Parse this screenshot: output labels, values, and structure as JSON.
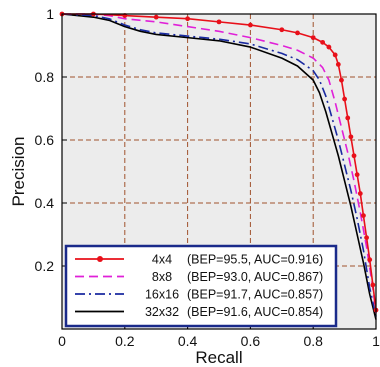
{
  "chart_data": {
    "type": "line",
    "title": "",
    "xlabel": "Recall",
    "ylabel": "Precision",
    "xlim": [
      0,
      1
    ],
    "ylim": [
      0,
      1
    ],
    "xticks": [
      0,
      0.2,
      0.4,
      0.6,
      0.8,
      1
    ],
    "yticks": [
      0.2,
      0.4,
      0.6,
      0.8,
      1
    ],
    "xtick_labels": [
      "0",
      "0.2",
      "0.4",
      "0.6",
      "0.8",
      "1"
    ],
    "ytick_labels": [
      "0.2",
      "0.4",
      "0.6",
      "0.8",
      "1"
    ],
    "grid": true,
    "grid_color": "#a0522d",
    "plot_background": "#ececec",
    "legend_placement": "bottom-left",
    "legend_border_color": "#1a2a8a",
    "series": [
      {
        "name": "4x4",
        "legend_note": "(BEP=95.5, AUC=0.916)",
        "color": "#e8101a",
        "line_style": "solid",
        "marker": "circle",
        "x": [
          0.0,
          0.1,
          0.2,
          0.3,
          0.4,
          0.5,
          0.6,
          0.7,
          0.75,
          0.8,
          0.83,
          0.85,
          0.87,
          0.88,
          0.89,
          0.9,
          0.91,
          0.92,
          0.93,
          0.94,
          0.95,
          0.96,
          0.97,
          0.98,
          0.99,
          1.0
        ],
        "y": [
          1.0,
          1.0,
          0.995,
          0.99,
          0.985,
          0.975,
          0.965,
          0.95,
          0.94,
          0.925,
          0.91,
          0.895,
          0.87,
          0.84,
          0.79,
          0.73,
          0.67,
          0.61,
          0.55,
          0.49,
          0.43,
          0.36,
          0.29,
          0.22,
          0.14,
          0.06
        ]
      },
      {
        "name": "8x8",
        "legend_note": "(BEP=93.0, AUC=0.867)",
        "color": "#e020d8",
        "line_style": "dashed",
        "marker": "none",
        "x": [
          0.0,
          0.1,
          0.15,
          0.2,
          0.3,
          0.4,
          0.5,
          0.6,
          0.7,
          0.75,
          0.8,
          0.83,
          0.85,
          0.87,
          0.89,
          0.91,
          0.93,
          0.95,
          0.97,
          0.99,
          1.0
        ],
        "y": [
          1.0,
          1.0,
          0.995,
          0.985,
          0.975,
          0.96,
          0.945,
          0.925,
          0.9,
          0.885,
          0.86,
          0.83,
          0.79,
          0.72,
          0.64,
          0.56,
          0.47,
          0.37,
          0.26,
          0.13,
          0.05
        ]
      },
      {
        "name": "16x16",
        "legend_note": "(BEP=91.7, AUC=0.857)",
        "color": "#1a2aa0",
        "line_style": "dash-dot",
        "marker": "none",
        "x": [
          0.0,
          0.1,
          0.15,
          0.2,
          0.25,
          0.3,
          0.4,
          0.5,
          0.6,
          0.7,
          0.75,
          0.8,
          0.82,
          0.84,
          0.86,
          0.88,
          0.9,
          0.92,
          0.94,
          0.96,
          0.98,
          1.0
        ],
        "y": [
          1.0,
          0.995,
          0.985,
          0.965,
          0.95,
          0.94,
          0.93,
          0.92,
          0.905,
          0.875,
          0.855,
          0.82,
          0.79,
          0.74,
          0.67,
          0.6,
          0.52,
          0.44,
          0.35,
          0.25,
          0.13,
          0.04
        ]
      },
      {
        "name": "32x32",
        "legend_note": "(BEP=91.6, AUC=0.854)",
        "color": "#000000",
        "line_style": "solid",
        "marker": "none",
        "x": [
          0.0,
          0.1,
          0.15,
          0.2,
          0.25,
          0.3,
          0.4,
          0.5,
          0.6,
          0.7,
          0.75,
          0.8,
          0.82,
          0.84,
          0.86,
          0.88,
          0.9,
          0.92,
          0.94,
          0.96,
          0.98,
          1.0
        ],
        "y": [
          1.0,
          0.99,
          0.98,
          0.96,
          0.945,
          0.935,
          0.925,
          0.915,
          0.895,
          0.86,
          0.835,
          0.79,
          0.75,
          0.69,
          0.62,
          0.55,
          0.47,
          0.39,
          0.3,
          0.21,
          0.11,
          0.03
        ]
      }
    ]
  }
}
